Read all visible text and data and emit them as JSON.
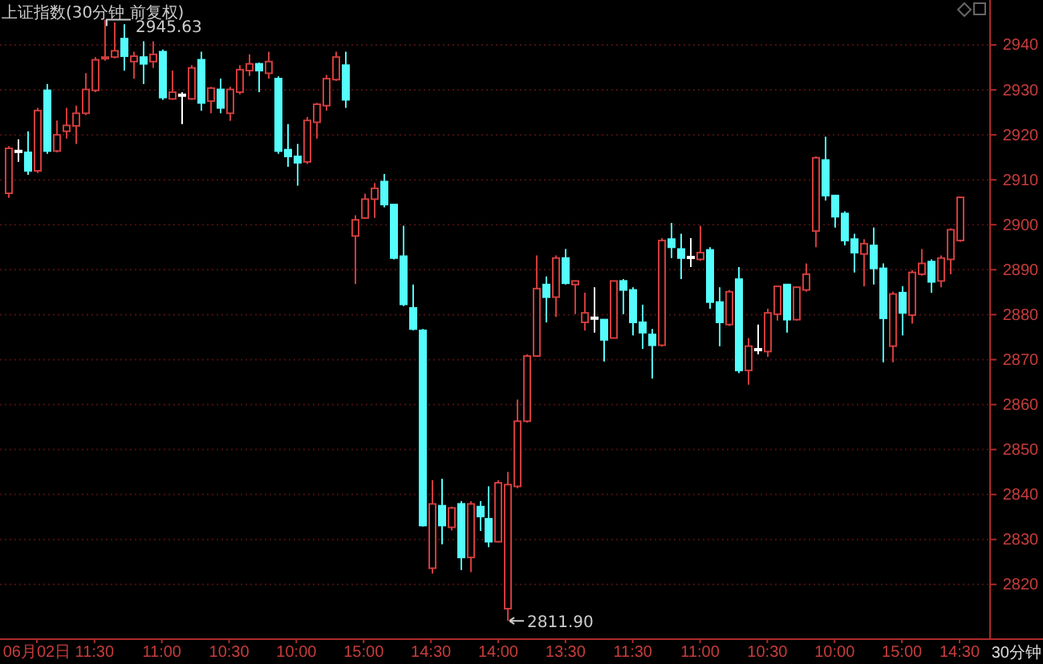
{
  "chart_data": {
    "type": "candlestick",
    "title": "上证指数(30分钟 前复权)",
    "xlabel": "30分钟",
    "categories": [
      null,
      null,
      null,
      "06月02日",
      null,
      null,
      null,
      null,
      null,
      "11:30",
      null,
      null,
      null,
      null,
      null,
      null,
      "11:00",
      null,
      null,
      null,
      null,
      null,
      null,
      "10:30",
      null,
      null,
      null,
      null,
      null,
      null,
      "10:00",
      null,
      null,
      null,
      null,
      null,
      null,
      "15:00",
      null,
      null,
      null,
      null,
      null,
      null,
      "14:30",
      null,
      null,
      null,
      null,
      null,
      null,
      "14:00",
      null,
      null,
      null,
      null,
      null,
      null,
      "13:30",
      null,
      null,
      null,
      null,
      null,
      null,
      "11:30",
      null,
      null,
      null,
      null,
      null,
      null,
      "11:00",
      null,
      null,
      null,
      null,
      null,
      null,
      "10:30",
      null,
      null,
      null,
      null,
      null,
      null,
      "10:00",
      null,
      null,
      null,
      null,
      null,
      null,
      "15:00",
      null,
      null,
      null,
      null,
      null,
      "14:30"
    ],
    "ohlc": [
      [
        2907,
        2917.5,
        2906,
        2917
      ],
      [
        2916.5,
        2919,
        2914,
        2916.5
      ],
      [
        2916.1,
        2920.8,
        2911.1,
        2912.0
      ],
      [
        2912.0,
        2926.0,
        2911.5,
        2925.4
      ],
      [
        2929.9,
        2931.3,
        2915.8,
        2916.4
      ],
      [
        2916.4,
        2923.2,
        2916.1,
        2920.0
      ],
      [
        2920.8,
        2926.0,
        2919.2,
        2922.1
      ],
      [
        2922.0,
        2926.5,
        2918.0,
        2924.8
      ],
      [
        2924.8,
        2933.7,
        2924.4,
        2930.1
      ],
      [
        2929.9,
        2937.3,
        2929.5,
        2936.7
      ],
      [
        2937.0,
        2945.63,
        2936.5,
        2937.3
      ],
      [
        2937.3,
        2945.0,
        2937.0,
        2938.7
      ],
      [
        2941.4,
        2944.6,
        2934.3,
        2937.5
      ],
      [
        2936.3,
        2938.5,
        2932.5,
        2937.5
      ],
      [
        2937.3,
        2940.8,
        2931.3,
        2935.8
      ],
      [
        2936.3,
        2940.8,
        2934.9,
        2937.9
      ],
      [
        2938.5,
        2939.0,
        2927.8,
        2928.3
      ],
      [
        2928.0,
        2934.3,
        2927.8,
        2929.5
      ],
      [
        2929.0,
        2929.5,
        2922.4,
        2929.0
      ],
      [
        2928.0,
        2935.5,
        2927.8,
        2934.9
      ],
      [
        2936.7,
        2938.5,
        2925.4,
        2927.1
      ],
      [
        2927.5,
        2930.7,
        2924.8,
        2930.4
      ],
      [
        2930.1,
        2932.5,
        2924.8,
        2926.0
      ],
      [
        2924.8,
        2930.7,
        2923.1,
        2930.1
      ],
      [
        2929.5,
        2935.5,
        2929.0,
        2934.5
      ],
      [
        2934.3,
        2937.9,
        2933.1,
        2935.8
      ],
      [
        2935.8,
        2936.1,
        2929.5,
        2934.3
      ],
      [
        2933.7,
        2938.5,
        2932.5,
        2936.3
      ],
      [
        2932.5,
        2933.0,
        2915.8,
        2916.4
      ],
      [
        2916.7,
        2922.4,
        2912.9,
        2915.2
      ],
      [
        2915.2,
        2918.0,
        2908.7,
        2913.8
      ],
      [
        2914.0,
        2924.0,
        2913.5,
        2923.2
      ],
      [
        2922.8,
        2927.1,
        2919.2,
        2926.8
      ],
      [
        2926.5,
        2933.3,
        2925.4,
        2932.5
      ],
      [
        2932.3,
        2938.5,
        2932.0,
        2937.3
      ],
      [
        2935.5,
        2938.5,
        2926.0,
        2927.8
      ],
      [
        2897.5,
        2902.1,
        2886.8,
        2901.1
      ],
      [
        2901.5,
        2906.9,
        2901.3,
        2905.7
      ],
      [
        2905.7,
        2909.3,
        2901.5,
        2908.1
      ],
      [
        2909.6,
        2911.3,
        2903.9,
        2904.5
      ],
      [
        2904.5,
        2904.5,
        2892.3,
        2892.6
      ],
      [
        2893.0,
        2899.8,
        2881.9,
        2882.3
      ],
      [
        2881.5,
        2886.7,
        2876.5,
        2876.8
      ],
      [
        2876.5,
        2876.8,
        2832.9,
        2833.1
      ],
      [
        2823.6,
        2843.2,
        2822.4,
        2837.9
      ],
      [
        2837.5,
        2843.5,
        2828.9,
        2833.1
      ],
      [
        2832.7,
        2837.3,
        2832.0,
        2837.0
      ],
      [
        2837.9,
        2838.5,
        2823.2,
        2826.0
      ],
      [
        2826.0,
        2838.5,
        2822.7,
        2837.9
      ],
      [
        2837.3,
        2838.5,
        2831.9,
        2835.1
      ],
      [
        2834.6,
        2841.8,
        2828.3,
        2829.5
      ],
      [
        2829.5,
        2843.2,
        2829.3,
        2842.6
      ],
      [
        2814.6,
        2845.0,
        2811.9,
        2842.2
      ],
      [
        2841.8,
        2861.1,
        2841.4,
        2856.3
      ],
      [
        2856.3,
        2871.2,
        2856.0,
        2870.8
      ],
      [
        2870.8,
        2893.2,
        2870.6,
        2885.8
      ],
      [
        2886.7,
        2888.5,
        2878.3,
        2883.9
      ],
      [
        2883.9,
        2893.2,
        2879.5,
        2892.6
      ],
      [
        2892.6,
        2894.6,
        2886.7,
        2887.0
      ],
      [
        2886.7,
        2887.6,
        2880.1,
        2887.5
      ],
      [
        2878.3,
        2884.9,
        2876.5,
        2880.4
      ],
      [
        2879.4,
        2886.1,
        2876.0,
        2879.4
      ],
      [
        2878.9,
        2878.9,
        2869.6,
        2874.4
      ],
      [
        2874.8,
        2887.5,
        2874.8,
        2887.5
      ],
      [
        2887.5,
        2887.9,
        2880.1,
        2885.5
      ],
      [
        2885.5,
        2886.1,
        2875.4,
        2878.3
      ],
      [
        2878.3,
        2882.2,
        2872.4,
        2876.0
      ],
      [
        2875.6,
        2876.8,
        2865.8,
        2873.2
      ],
      [
        2873.2,
        2897.0,
        2872.9,
        2896.5
      ],
      [
        2896.8,
        2900.4,
        2892.6,
        2895.0
      ],
      [
        2894.6,
        2898.0,
        2887.9,
        2892.6
      ],
      [
        2892.9,
        2897.0,
        2890.6,
        2892.9
      ],
      [
        2892.3,
        2899.8,
        2892.0,
        2893.8
      ],
      [
        2894.4,
        2895.0,
        2881.3,
        2882.8
      ],
      [
        2882.8,
        2886.1,
        2873.0,
        2878.3
      ],
      [
        2877.8,
        2885.5,
        2877.5,
        2885.1
      ],
      [
        2887.9,
        2890.6,
        2867.0,
        2867.6
      ],
      [
        2867.6,
        2874.8,
        2864.4,
        2873.0
      ],
      [
        2872.4,
        2877.8,
        2871.2,
        2872.4
      ],
      [
        2871.8,
        2881.3,
        2870.6,
        2880.4
      ],
      [
        2880.1,
        2886.3,
        2878.7,
        2886.3
      ],
      [
        2886.7,
        2886.7,
        2876.0,
        2878.9
      ],
      [
        2878.9,
        2886.3,
        2878.7,
        2886.1
      ],
      [
        2885.5,
        2891.4,
        2885.1,
        2889.0
      ],
      [
        2898.6,
        2915.2,
        2895.0,
        2914.9
      ],
      [
        2914.4,
        2919.6,
        2905.4,
        2906.5
      ],
      [
        2906.5,
        2906.5,
        2899.4,
        2901.8
      ],
      [
        2902.5,
        2903.0,
        2895.4,
        2896.5
      ],
      [
        2896.8,
        2898.0,
        2889.4,
        2893.8
      ],
      [
        2893.5,
        2896.8,
        2886.3,
        2895.8
      ],
      [
        2895.4,
        2899.4,
        2886.7,
        2890.3
      ],
      [
        2890.3,
        2891.4,
        2869.4,
        2879.2
      ],
      [
        2873.0,
        2885.1,
        2869.4,
        2884.6
      ],
      [
        2884.9,
        2886.3,
        2875.4,
        2880.4
      ],
      [
        2879.9,
        2889.9,
        2878.0,
        2889.4
      ],
      [
        2889.0,
        2894.6,
        2888.7,
        2891.4
      ],
      [
        2891.8,
        2892.3,
        2884.9,
        2887.3
      ],
      [
        2887.5,
        2893.2,
        2886.1,
        2892.6
      ],
      [
        2892.3,
        2899.2,
        2889.0,
        2898.9
      ],
      [
        2896.5,
        2906.3,
        2896.2,
        2906.1
      ]
    ],
    "ylim": [
      2808,
      2950
    ],
    "yticks": [
      2820,
      2830,
      2840,
      2850,
      2860,
      2870,
      2880,
      2890,
      2900,
      2910,
      2920,
      2930,
      2940
    ],
    "grid": "y",
    "annotations": [
      "2945.63",
      "2811.90"
    ]
  }
}
